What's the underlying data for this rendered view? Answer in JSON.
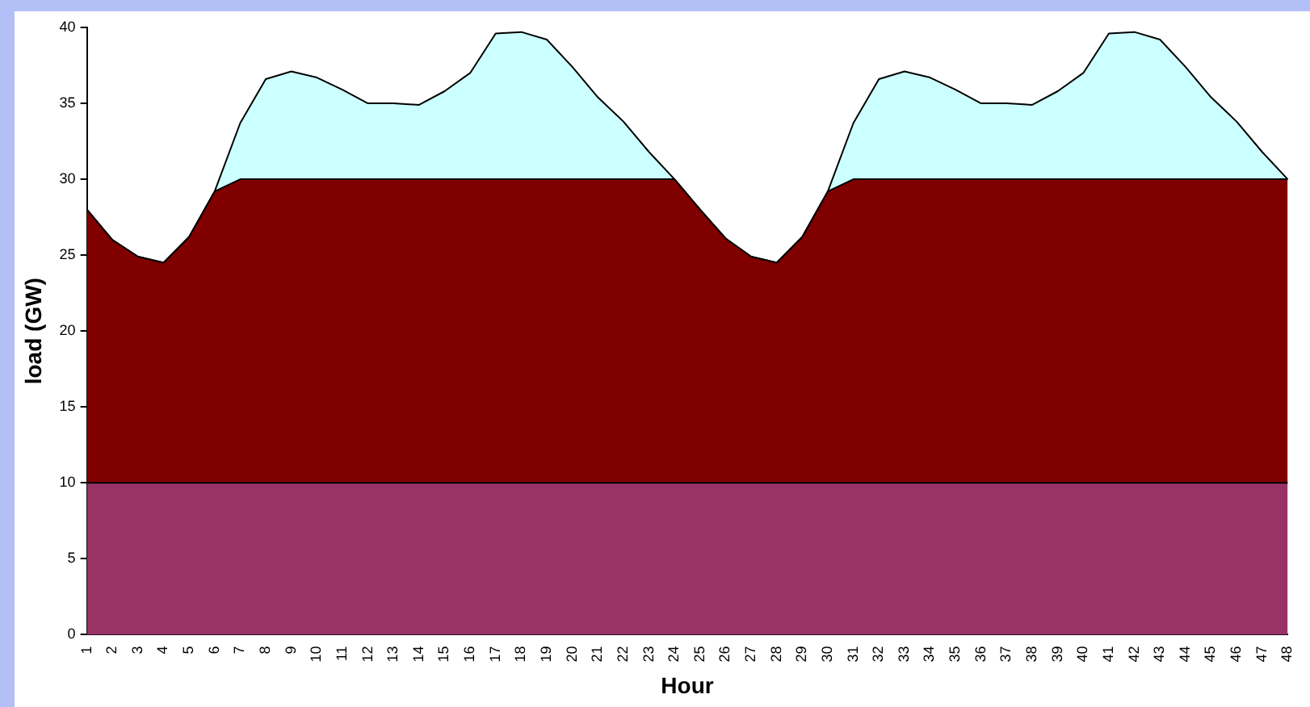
{
  "chart_data": {
    "type": "area",
    "stacked": true,
    "xlabel": "Hour",
    "ylabel": "load (GW)",
    "categories": [
      "1",
      "2",
      "3",
      "4",
      "5",
      "6",
      "7",
      "8",
      "9",
      "10",
      "11",
      "12",
      "13",
      "14",
      "15",
      "16",
      "17",
      "18",
      "19",
      "20",
      "21",
      "22",
      "23",
      "24",
      "25",
      "26",
      "27",
      "28",
      "29",
      "30",
      "31",
      "32",
      "33",
      "34",
      "35",
      "36",
      "37",
      "38",
      "39",
      "40",
      "41",
      "42",
      "43",
      "44",
      "45",
      "46",
      "47",
      "48"
    ],
    "ylim": [
      0,
      40
    ],
    "yticks": [
      0,
      5,
      10,
      15,
      20,
      25,
      30,
      35,
      40
    ],
    "grid": false,
    "legend": false,
    "series": [
      {
        "color": "#993366",
        "values": [
          10,
          10,
          10,
          10,
          10,
          10,
          10,
          10,
          10,
          10,
          10,
          10,
          10,
          10,
          10,
          10,
          10,
          10,
          10,
          10,
          10,
          10,
          10,
          10,
          10,
          10,
          10,
          10,
          10,
          10,
          10,
          10,
          10,
          10,
          10,
          10,
          10,
          10,
          10,
          10,
          10,
          10,
          10,
          10,
          10,
          10,
          10,
          10
        ]
      },
      {
        "color": "#800000",
        "values": [
          18,
          16,
          14.9,
          14.5,
          16.2,
          19.2,
          20,
          20,
          20,
          20,
          20,
          20,
          20,
          20,
          20,
          20,
          20,
          20,
          20,
          20,
          20,
          20,
          20,
          20,
          18,
          16.1,
          14.9,
          14.5,
          16.2,
          19.2,
          20,
          20,
          20,
          20,
          20,
          20,
          20,
          20,
          20,
          20,
          20,
          20,
          20,
          20,
          20,
          20,
          20,
          20
        ]
      },
      {
        "color": "#ccffff",
        "values": [
          0,
          0,
          0,
          0,
          0,
          0,
          3.7,
          6.6,
          7.1,
          6.7,
          5.9,
          5,
          5,
          4.9,
          5.8,
          7,
          9.6,
          9.7,
          9.2,
          7.4,
          5.4,
          3.8,
          1.8,
          0,
          0,
          0,
          0,
          0,
          0,
          0,
          3.7,
          6.6,
          7.1,
          6.7,
          5.9,
          5,
          5,
          4.9,
          5.8,
          7,
          9.6,
          9.7,
          9.2,
          7.4,
          5.4,
          3.8,
          1.8,
          0
        ]
      }
    ]
  }
}
